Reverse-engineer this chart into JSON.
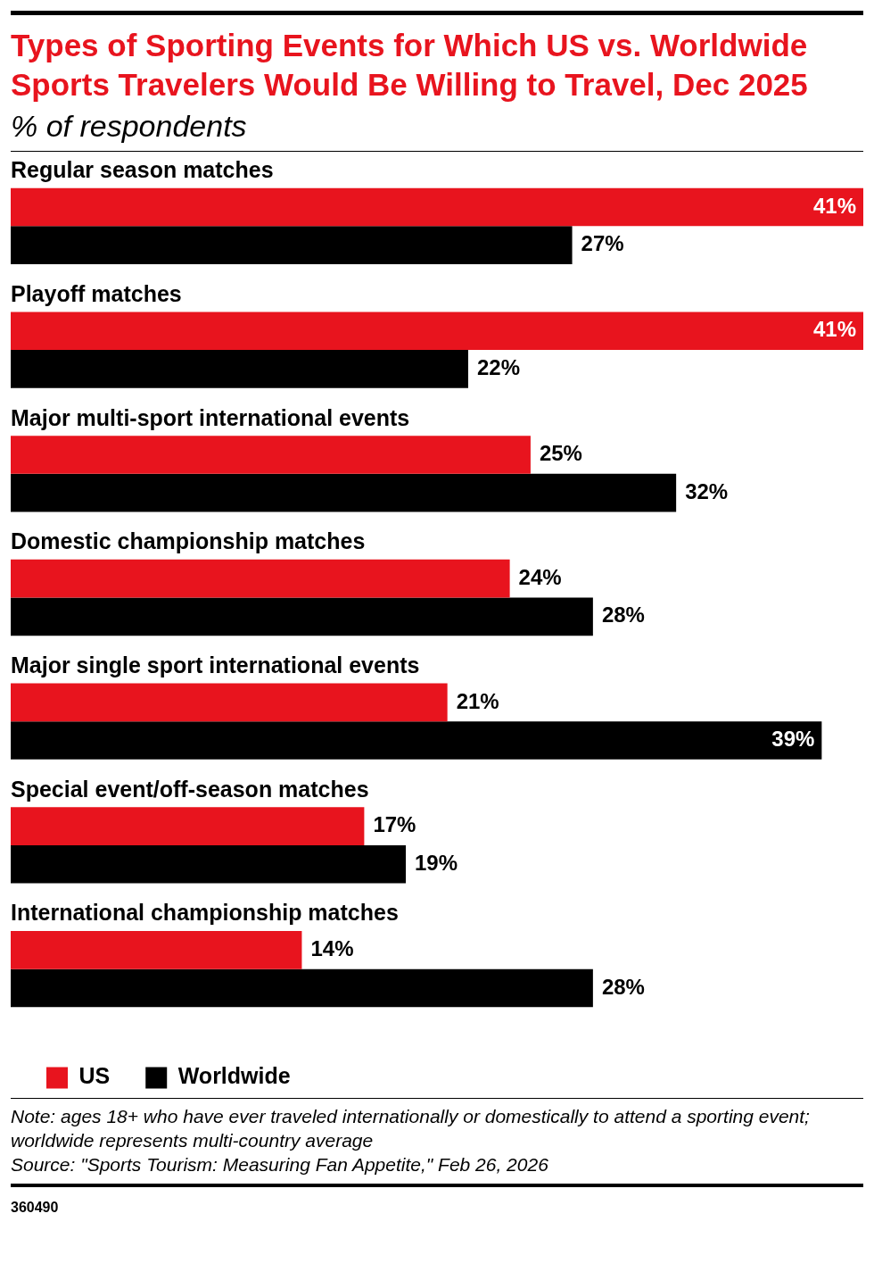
{
  "chart_data": {
    "type": "bar",
    "orientation": "horizontal",
    "title": "Types of Sporting Events for Which US vs. Worldwide Sports Travelers Would Be Willing to Travel, Dec 2025",
    "subtitle": "% of respondents",
    "categories": [
      "Regular season matches",
      "Playoff matches",
      "Major multi-sport international events",
      "Domestic championship matches",
      "Major single sport international events",
      "Special event/off-season matches",
      "International championship matches"
    ],
    "series": [
      {
        "name": "US",
        "color": "#e8141e",
        "values": [
          41,
          41,
          25,
          24,
          21,
          17,
          14
        ],
        "value_labels": [
          "41%",
          "41%",
          "25%",
          "24%",
          "21%",
          "17%",
          "14%"
        ]
      },
      {
        "name": "Worldwide",
        "color": "#000000",
        "values": [
          27,
          22,
          32,
          28,
          39,
          19,
          28
        ],
        "value_labels": [
          "27%",
          "22%",
          "32%",
          "28%",
          "39%",
          "19%",
          "28%"
        ]
      }
    ],
    "legend": "bottom",
    "annotations": [
      "Note: ages 18+ who have ever traveled internationally or domestically to attend a sporting event; worldwide represents multi-country average",
      "Source: \"Sports Tourism: Measuring Fan Appetite,\" Feb 26, 2026",
      "360490"
    ]
  }
}
